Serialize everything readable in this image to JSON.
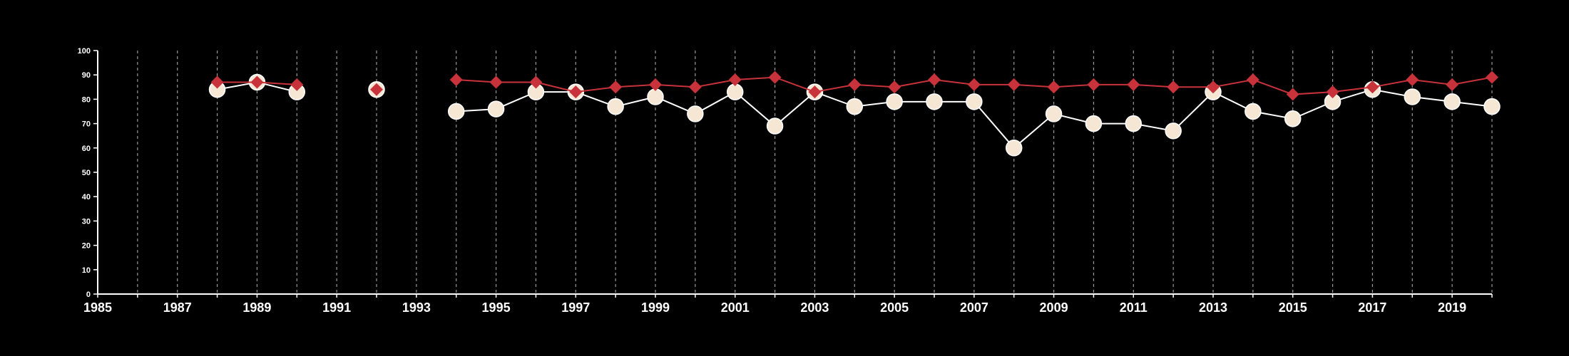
{
  "chart_data": {
    "type": "line",
    "title": "",
    "xlabel": "",
    "ylabel": "",
    "xlim": [
      1985,
      2020
    ],
    "ylim": [
      0,
      100
    ],
    "x_ticks": [
      "1985",
      "1987",
      "1989",
      "1991",
      "1993",
      "1995",
      "1997",
      "1999",
      "2001",
      "2003",
      "2005",
      "2007",
      "2009",
      "2011",
      "2013",
      "2015",
      "2017",
      "2019"
    ],
    "y_ticks": [
      "0",
      "10",
      "20",
      "30",
      "40",
      "50",
      "60",
      "70",
      "80",
      "90",
      "100"
    ],
    "vertical_gridlines": "dashed, every year",
    "series": [
      {
        "marker": "circle",
        "color": "#ffffff",
        "marker_fill": "#f6e7d5",
        "segments": [
          [
            [
              1988,
              84
            ],
            [
              1989,
              87
            ],
            [
              1990,
              83
            ]
          ],
          [
            [
              1992,
              84
            ]
          ],
          [
            [
              1994,
              75
            ],
            [
              1995,
              76
            ],
            [
              1996,
              83
            ],
            [
              1997,
              83
            ],
            [
              1998,
              77
            ],
            [
              1999,
              81
            ],
            [
              2000,
              74
            ],
            [
              2001,
              83
            ],
            [
              2002,
              69
            ],
            [
              2003,
              83
            ],
            [
              2004,
              77
            ],
            [
              2005,
              79
            ],
            [
              2006,
              79
            ],
            [
              2007,
              79
            ],
            [
              2008,
              60
            ],
            [
              2009,
              74
            ],
            [
              2010,
              70
            ],
            [
              2011,
              70
            ],
            [
              2012,
              67
            ],
            [
              2013,
              83
            ],
            [
              2014,
              75
            ],
            [
              2015,
              72
            ],
            [
              2016,
              79
            ],
            [
              2017,
              84
            ],
            [
              2018,
              81
            ],
            [
              2019,
              79
            ],
            [
              2020,
              77
            ]
          ]
        ]
      },
      {
        "marker": "diamond",
        "color": "#c8323a",
        "segments": [
          [
            [
              1988,
              87
            ],
            [
              1989,
              87
            ],
            [
              1990,
              86
            ]
          ],
          [
            [
              1992,
              84
            ]
          ],
          [
            [
              1994,
              88
            ],
            [
              1995,
              87
            ],
            [
              1996,
              87
            ],
            [
              1997,
              83
            ],
            [
              1998,
              85
            ],
            [
              1999,
              86
            ],
            [
              2000,
              85
            ],
            [
              2001,
              88
            ],
            [
              2002,
              89
            ],
            [
              2003,
              83
            ],
            [
              2004,
              86
            ],
            [
              2005,
              85
            ],
            [
              2006,
              88
            ],
            [
              2007,
              86
            ],
            [
              2008,
              86
            ],
            [
              2009,
              85
            ],
            [
              2010,
              86
            ],
            [
              2011,
              86
            ],
            [
              2012,
              85
            ],
            [
              2013,
              85
            ],
            [
              2014,
              88
            ],
            [
              2015,
              82
            ],
            [
              2016,
              83
            ],
            [
              2017,
              85
            ],
            [
              2018,
              88
            ],
            [
              2019,
              86
            ],
            [
              2020,
              89
            ]
          ]
        ]
      }
    ]
  }
}
